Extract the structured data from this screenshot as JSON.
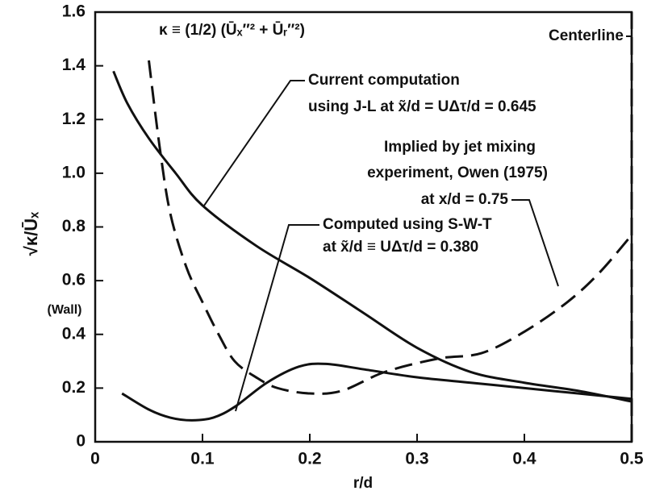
{
  "chart_data": {
    "type": "line",
    "xlabel": "r/d",
    "ylabel": "√κ/Ūₓ",
    "xlim": [
      0,
      0.5
    ],
    "ylim": [
      0,
      1.6
    ],
    "xticks": [
      0,
      0.1,
      0.2,
      0.3,
      0.4,
      0.5
    ],
    "yticks": [
      0,
      0.2,
      0.4,
      0.6,
      0.8,
      {
        "value": 1,
        "label": "1.0"
      },
      1.2,
      1.4,
      1.6
    ],
    "series": [
      {
        "color": "#111",
        "dashed": false,
        "x": [
          0.017,
          0.03,
          0.05,
          0.075,
          0.1,
          0.15,
          0.2,
          0.25,
          0.3,
          0.35,
          0.4,
          0.45,
          0.5
        ],
        "values": [
          1.38,
          1.26,
          1.13,
          1.0,
          0.88,
          0.73,
          0.61,
          0.48,
          0.35,
          0.26,
          0.22,
          0.19,
          0.15
        ]
      },
      {
        "color": "#111",
        "dashed": false,
        "x": [
          0.025,
          0.05,
          0.07,
          0.09,
          0.11,
          0.13,
          0.16,
          0.19,
          0.215,
          0.25,
          0.3,
          0.35,
          0.4,
          0.45,
          0.5
        ],
        "values": [
          0.18,
          0.12,
          0.09,
          0.08,
          0.09,
          0.13,
          0.22,
          0.28,
          0.29,
          0.27,
          0.24,
          0.22,
          0.2,
          0.18,
          0.16
        ]
      },
      {
        "color": "#111",
        "dashed": true,
        "x": [
          0.05,
          0.06,
          0.07,
          0.085,
          0.1,
          0.115,
          0.13,
          0.15,
          0.17,
          0.2,
          0.23,
          0.27,
          0.32,
          0.36,
          0.4,
          0.44,
          0.47,
          0.5
        ],
        "values": [
          1.42,
          1.1,
          0.85,
          0.65,
          0.52,
          0.4,
          0.3,
          0.24,
          0.2,
          0.18,
          0.19,
          0.26,
          0.31,
          0.33,
          0.41,
          0.52,
          0.63,
          0.77
        ]
      },
      {
        "color": "#111",
        "dashed": true,
        "x": [
          0.5,
          0.5
        ],
        "values": [
          0,
          1.6
        ]
      }
    ],
    "annotations": [
      "κ ≡ (1/2) (Ūₓ″² + Ūᵣ″²)",
      "Current computation",
      "using J-L at x̃/d = UΔτ/d = 0.645",
      "Implied by jet mixing",
      "experiment, Owen (1975)",
      "at x/d = 0.75",
      "Computed using S-W-T",
      "at x̃/d ≡ UΔτ/d = 0.380",
      "Centerline",
      "(Wall)"
    ]
  }
}
